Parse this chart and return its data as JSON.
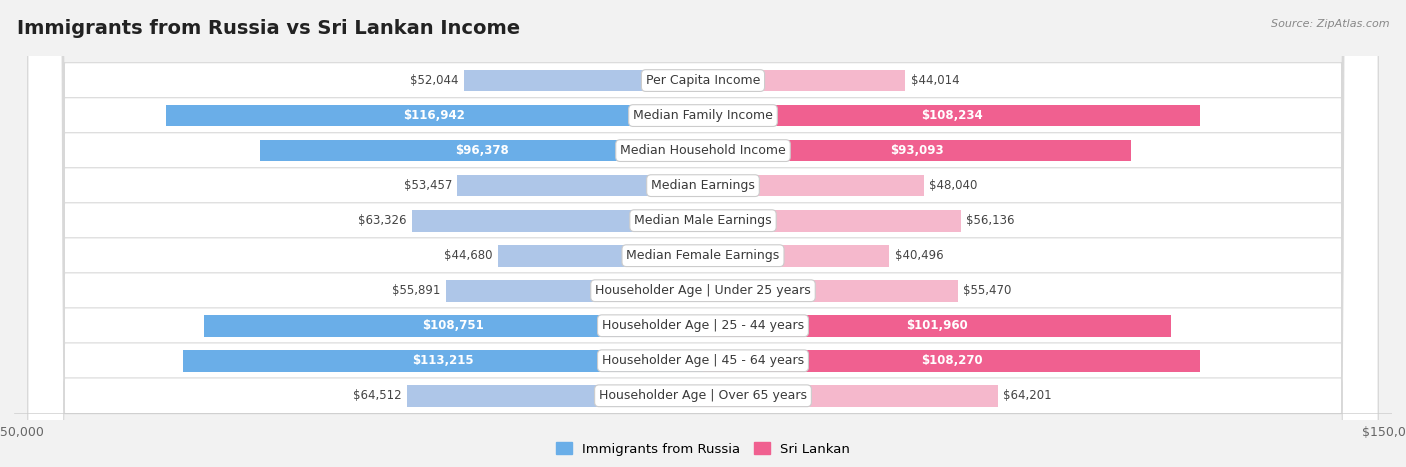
{
  "title": "Immigrants from Russia vs Sri Lankan Income",
  "source": "Source: ZipAtlas.com",
  "categories": [
    "Per Capita Income",
    "Median Family Income",
    "Median Household Income",
    "Median Earnings",
    "Median Male Earnings",
    "Median Female Earnings",
    "Householder Age | Under 25 years",
    "Householder Age | 25 - 44 years",
    "Householder Age | 45 - 64 years",
    "Householder Age | Over 65 years"
  ],
  "russia_values": [
    52044,
    116942,
    96378,
    53457,
    63326,
    44680,
    55891,
    108751,
    113215,
    64512
  ],
  "srilanka_values": [
    44014,
    108234,
    93093,
    48040,
    56136,
    40496,
    55470,
    101960,
    108270,
    64201
  ],
  "russia_labels": [
    "$52,044",
    "$116,942",
    "$96,378",
    "$53,457",
    "$63,326",
    "$44,680",
    "$55,891",
    "$108,751",
    "$113,215",
    "$64,512"
  ],
  "srilanka_labels": [
    "$44,014",
    "$108,234",
    "$93,093",
    "$48,040",
    "$56,136",
    "$40,496",
    "$55,470",
    "$101,960",
    "$108,270",
    "$64,201"
  ],
  "russia_color_light": "#aec6e8",
  "russia_color_dark": "#6aaee8",
  "srilanka_color_light": "#f5b8cc",
  "srilanka_color_dark": "#f06090",
  "label_inside_threshold": 80000,
  "max_value": 150000,
  "background_color": "#f2f2f2",
  "row_color_odd": "#ffffff",
  "row_color_even": "#f8f8f8",
  "legend_russia": "Immigrants from Russia",
  "legend_srilanka": "Sri Lankan",
  "bar_height": 0.62,
  "title_fontsize": 14,
  "label_fontsize": 8.5,
  "cat_fontsize": 9
}
